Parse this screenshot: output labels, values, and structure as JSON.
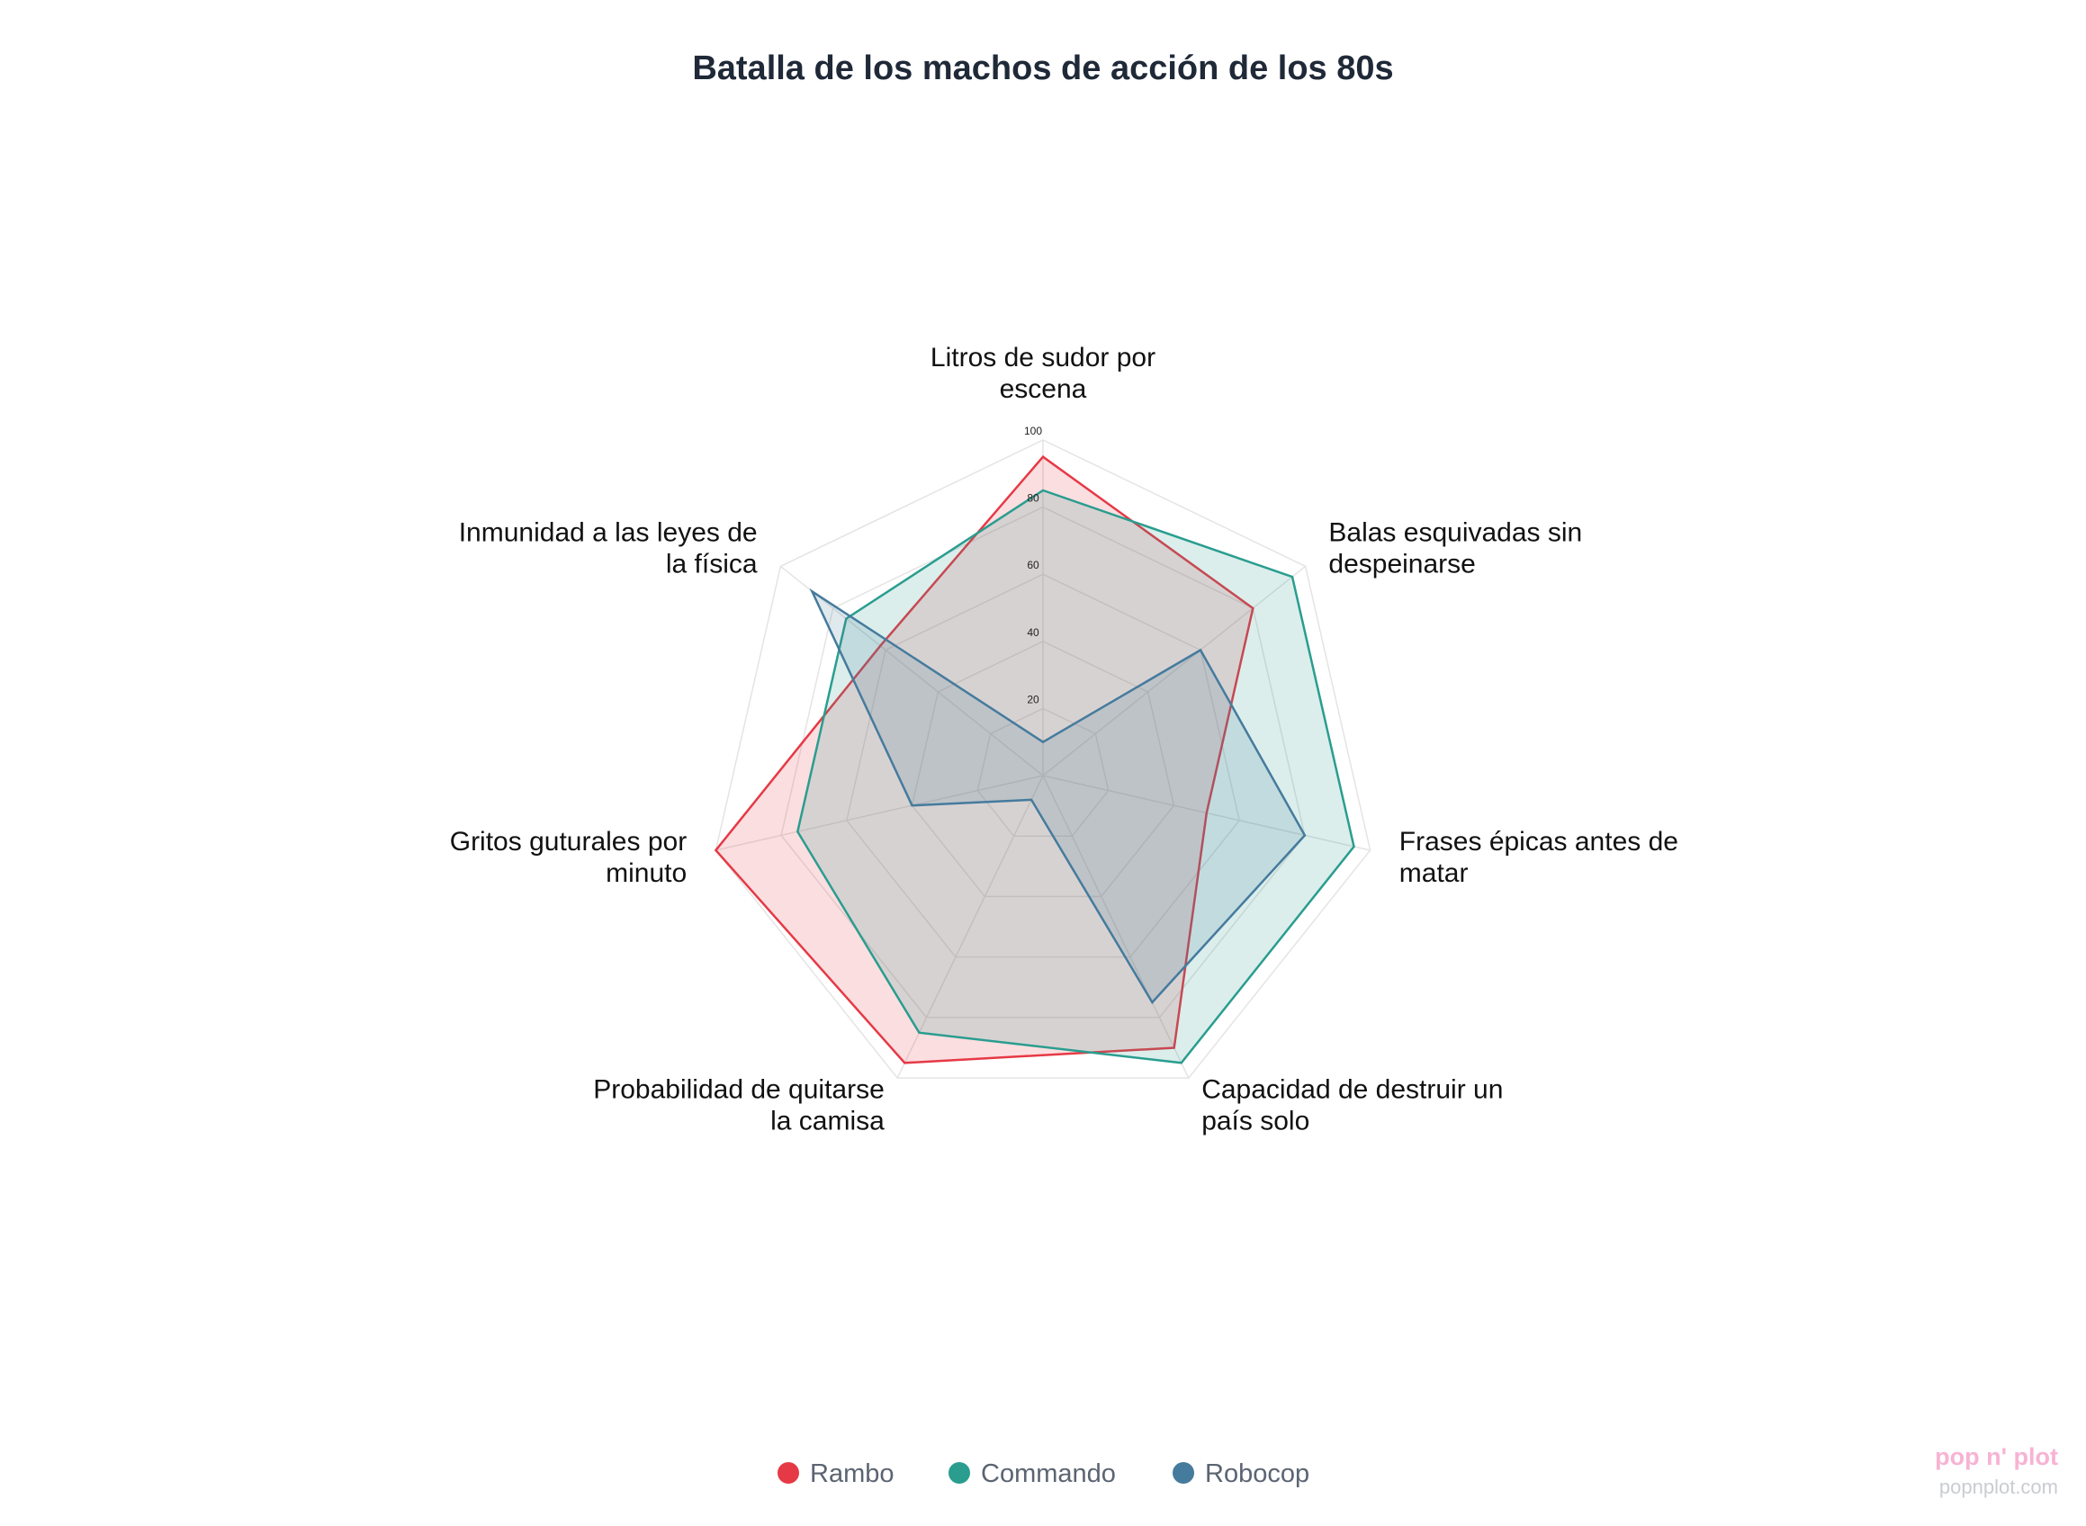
{
  "chart_data": {
    "type": "radar",
    "title": "Batalla de los machos de acción de los 80s",
    "categories": [
      [
        "Litros de sudor por",
        "escena"
      ],
      [
        "Balas esquivadas sin",
        "despeinarse"
      ],
      [
        "Frases épicas antes de",
        "matar"
      ],
      [
        "Capacidad de destruir un",
        "país solo"
      ],
      [
        "Probabilidad de quitarse",
        "la camisa"
      ],
      [
        "Gritos guturales por",
        "minuto"
      ],
      [
        "Inmunidad a las leyes de",
        "la física"
      ]
    ],
    "rlim": [
      0,
      100
    ],
    "ticks": [
      "20",
      "40",
      "60",
      "80",
      "100"
    ],
    "grid": true,
    "legend_position": "bottom-center",
    "series": [
      {
        "name": "Rambo",
        "color": "#e63946",
        "values": [
          95,
          80,
          50,
          90,
          95,
          100,
          62
        ]
      },
      {
        "name": "Commando",
        "color": "#2a9d8f",
        "values": [
          85,
          95,
          95,
          95,
          85,
          75,
          75
        ]
      },
      {
        "name": "Robocop",
        "color": "#457b9d",
        "values": [
          10,
          60,
          80,
          75,
          8,
          40,
          88
        ]
      }
    ]
  },
  "watermark": {
    "logo": "pop n' plot",
    "url": "popnplot.com"
  }
}
